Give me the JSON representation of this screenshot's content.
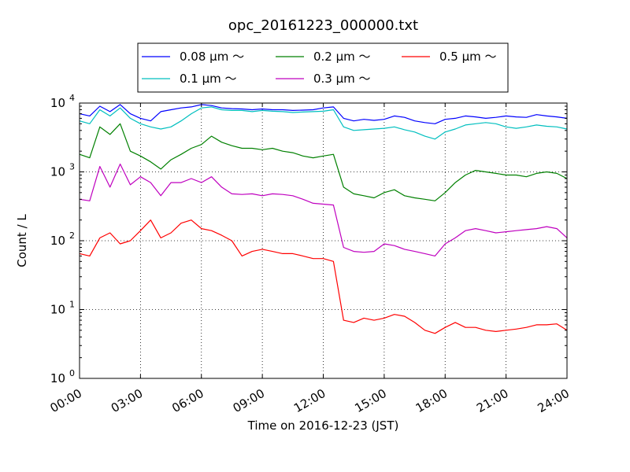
{
  "chart_data": {
    "type": "line",
    "title": "opc_20161223_000000.txt",
    "xlabel": "Time on 2016-12-23 (JST)",
    "ylabel": "Count / L",
    "yscale": "log",
    "xlim": [
      0,
      24
    ],
    "ylim": [
      1,
      10000
    ],
    "grid": true,
    "legend_placement": "top-center, above plot",
    "x_ticks": [
      0,
      3,
      6,
      9,
      12,
      15,
      18,
      21,
      24
    ],
    "x_tick_labels": [
      "00:00",
      "03:00",
      "06:00",
      "09:00",
      "12:00",
      "15:00",
      "18:00",
      "21:00",
      "24:00"
    ],
    "y_ticks": [
      1,
      10,
      100,
      1000,
      10000
    ],
    "y_tick_labels": [
      {
        "base": "10",
        "exp": "0"
      },
      {
        "base": "10",
        "exp": "1"
      },
      {
        "base": "10",
        "exp": "2"
      },
      {
        "base": "10",
        "exp": "3"
      },
      {
        "base": "10",
        "exp": "4"
      }
    ],
    "x": [
      0,
      0.5,
      1,
      1.5,
      2,
      2.5,
      3,
      3.5,
      4,
      4.5,
      5,
      5.5,
      6,
      6.5,
      7,
      7.5,
      8,
      8.5,
      9,
      9.5,
      10,
      10.5,
      11,
      11.5,
      12,
      12.5,
      13,
      13.5,
      14,
      14.5,
      15,
      15.5,
      16,
      16.5,
      17,
      17.5,
      18,
      18.5,
      19,
      19.5,
      20,
      20.5,
      21,
      21.5,
      22,
      22.5,
      23,
      23.5,
      24
    ],
    "series": [
      {
        "name": "0.08 μm ～",
        "color": "#0000ff",
        "values": [
          7000,
          6500,
          9000,
          7500,
          9500,
          7000,
          6000,
          5500,
          7500,
          8000,
          8500,
          8800,
          9500,
          9200,
          8500,
          8300,
          8200,
          8000,
          8200,
          8000,
          8000,
          7800,
          7900,
          8000,
          8500,
          8800,
          6000,
          5500,
          5800,
          5600,
          5800,
          6500,
          6200,
          5500,
          5200,
          5000,
          5800,
          6000,
          6500,
          6300,
          6000,
          6200,
          6500,
          6300,
          6200,
          6800,
          6500,
          6300,
          6000
        ]
      },
      {
        "name": "0.1 μm ～",
        "color": "#00bfbf",
        "values": [
          5500,
          5000,
          8000,
          6500,
          8500,
          6000,
          5000,
          4500,
          4200,
          4500,
          5500,
          7000,
          8500,
          8800,
          8000,
          7800,
          7800,
          7500,
          7800,
          7600,
          7500,
          7300,
          7400,
          7500,
          7600,
          8000,
          4500,
          4000,
          4100,
          4200,
          4300,
          4500,
          4100,
          3800,
          3300,
          3000,
          3800,
          4200,
          4800,
          5000,
          5200,
          5000,
          4500,
          4300,
          4500,
          4800,
          4600,
          4500,
          4200
        ]
      },
      {
        "name": "0.2 μm ～",
        "color": "#008000",
        "values": [
          1800,
          1600,
          4500,
          3500,
          5000,
          2000,
          1700,
          1400,
          1100,
          1500,
          1800,
          2200,
          2500,
          3300,
          2700,
          2400,
          2200,
          2200,
          2100,
          2200,
          2000,
          1900,
          1700,
          1600,
          1700,
          1800,
          600,
          480,
          450,
          420,
          500,
          550,
          450,
          420,
          400,
          380,
          500,
          700,
          900,
          1050,
          1000,
          950,
          900,
          900,
          850,
          950,
          1000,
          950,
          800
        ]
      },
      {
        "name": "0.3 μm ～",
        "color": "#bf00bf",
        "values": [
          400,
          380,
          1200,
          600,
          1300,
          650,
          850,
          700,
          450,
          700,
          700,
          800,
          700,
          850,
          600,
          480,
          470,
          480,
          450,
          480,
          470,
          450,
          400,
          350,
          340,
          330,
          80,
          70,
          68,
          70,
          90,
          85,
          75,
          70,
          65,
          60,
          90,
          110,
          140,
          150,
          140,
          130,
          135,
          140,
          145,
          150,
          160,
          150,
          110
        ]
      },
      {
        "name": "0.5 μm ～",
        "color": "#ff0000",
        "values": [
          65,
          60,
          110,
          130,
          90,
          100,
          140,
          200,
          110,
          130,
          180,
          200,
          150,
          140,
          120,
          100,
          60,
          70,
          75,
          70,
          65,
          65,
          60,
          55,
          55,
          50,
          7,
          6.5,
          7.5,
          7,
          7.5,
          8.5,
          8,
          6.5,
          5,
          4.5,
          5.5,
          6.5,
          5.5,
          5.5,
          5,
          4.8,
          5,
          5.2,
          5.5,
          6,
          6,
          6.2,
          5
        ]
      }
    ]
  }
}
